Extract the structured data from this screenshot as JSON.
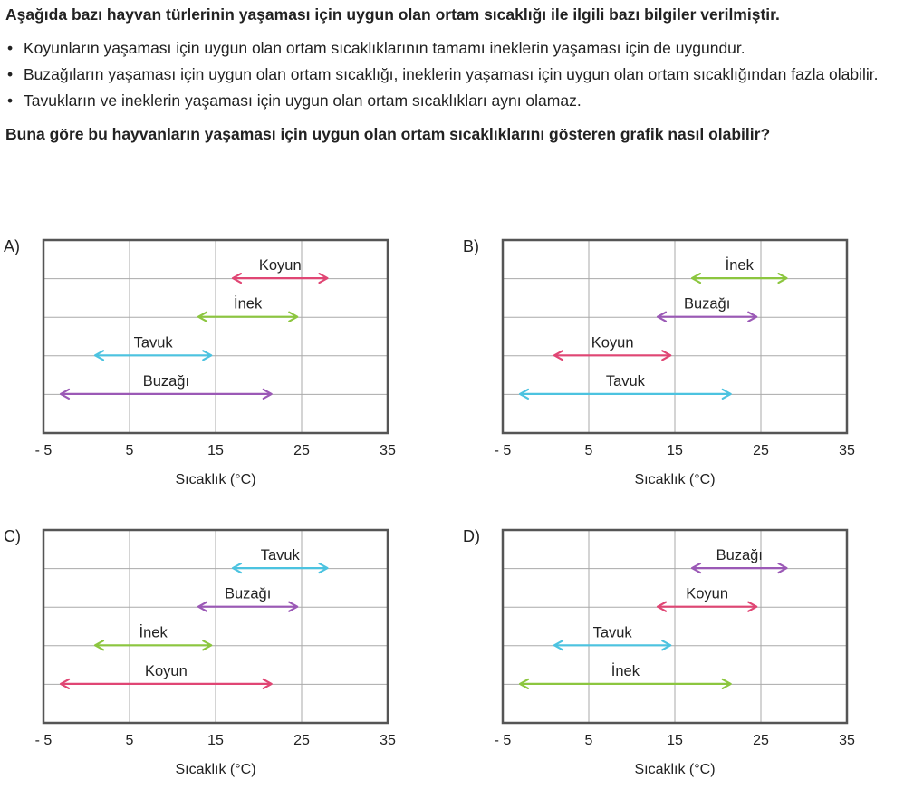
{
  "question": {
    "intro": "Aşağıda bazı hayvan türlerinin yaşaması için uygun olan ortam sıcaklığı ile ilgili bazı bilgiler verilmiştir.",
    "bullets": [
      "Koyunların yaşaması için uygun olan ortam sıcaklıklarının tamamı ineklerin yaşaması için de uygundur.",
      "Buzağıların yaşaması için uygun olan ortam sıcaklığı, ineklerin yaşaması için uygun olan ortam sıcaklığından fazla olabilir.",
      "Tavukların ve ineklerin yaşaması için uygun olan ortam sıcaklıkları aynı olamaz."
    ],
    "ask": "Buna göre bu hayvanların yaşaması için uygun olan ortam sıcaklıklarını gösteren grafik nasıl olabilir?"
  },
  "colors": {
    "Koyun": "#e04674",
    "İnek": "#8cc63f",
    "Tavuk": "#4cc3e0",
    "Buzağı": "#9b59b6",
    "frame": "#555555",
    "grid": "#aaaaaa"
  },
  "chart_data": [
    {
      "type": "range",
      "option": "A)",
      "xlabel": "Sıcaklık (°C)",
      "xticks": [
        "- 5",
        "5",
        "15",
        "25",
        "35"
      ],
      "xlim": [
        -5,
        35
      ],
      "rows": [
        {
          "label": "Koyun",
          "start": 17,
          "end": 28
        },
        {
          "label": "İnek",
          "start": 13,
          "end": 24.5
        },
        {
          "label": "Tavuk",
          "start": 1,
          "end": 14.5
        },
        {
          "label": "Buzağı",
          "start": -3,
          "end": 21.5
        }
      ]
    },
    {
      "type": "range",
      "option": "B)",
      "xlabel": "Sıcaklık (°C)",
      "xticks": [
        "- 5",
        "5",
        "15",
        "25",
        "35"
      ],
      "xlim": [
        -5,
        35
      ],
      "rows": [
        {
          "label": "İnek",
          "start": 17,
          "end": 28
        },
        {
          "label": "Buzağı",
          "start": 13,
          "end": 24.5
        },
        {
          "label": "Koyun",
          "start": 1,
          "end": 14.5
        },
        {
          "label": "Tavuk",
          "start": -3,
          "end": 21.5
        }
      ]
    },
    {
      "type": "range",
      "option": "C)",
      "xlabel": "Sıcaklık (°C)",
      "xticks": [
        "- 5",
        "5",
        "15",
        "25",
        "35"
      ],
      "xlim": [
        -5,
        35
      ],
      "rows": [
        {
          "label": "Tavuk",
          "start": 17,
          "end": 28
        },
        {
          "label": "Buzağı",
          "start": 13,
          "end": 24.5
        },
        {
          "label": "İnek",
          "start": 1,
          "end": 14.5
        },
        {
          "label": "Koyun",
          "start": -3,
          "end": 21.5
        }
      ]
    },
    {
      "type": "range",
      "option": "D)",
      "xlabel": "Sıcaklık (°C)",
      "xticks": [
        "- 5",
        "5",
        "15",
        "25",
        "35"
      ],
      "xlim": [
        -5,
        35
      ],
      "rows": [
        {
          "label": "Buzağı",
          "start": 17,
          "end": 28
        },
        {
          "label": "Koyun",
          "start": 13,
          "end": 24.5
        },
        {
          "label": "Tavuk",
          "start": 1,
          "end": 14.5
        },
        {
          "label": "İnek",
          "start": -3,
          "end": 21.5
        }
      ]
    }
  ]
}
